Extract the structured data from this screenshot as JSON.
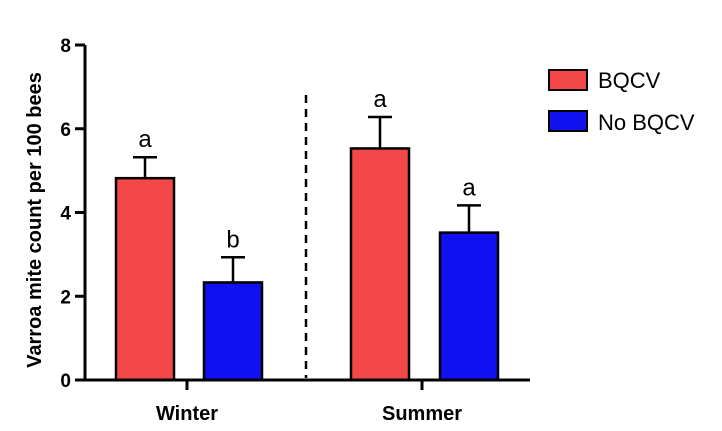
{
  "chart_data": {
    "type": "bar",
    "categories": [
      "Winter",
      "Summer"
    ],
    "series": [
      {
        "name": "BQCV",
        "color": "#f44848",
        "values": [
          4.82,
          5.53
        ],
        "errors": [
          0.5,
          0.75
        ],
        "letters": [
          "a",
          "a"
        ]
      },
      {
        "name": "No BQCV",
        "color": "#1010f0",
        "values": [
          2.33,
          3.52
        ],
        "errors": [
          0.6,
          0.65
        ],
        "letters": [
          "b",
          "a"
        ]
      }
    ],
    "ylabel": "Varroa mite count per 100 bees",
    "ylim": [
      0,
      8
    ],
    "yticks": [
      "0",
      "2",
      "4",
      "6",
      "8"
    ],
    "grid": false,
    "legend_position": "top-right",
    "separator": "dashed vertical line between groups"
  }
}
